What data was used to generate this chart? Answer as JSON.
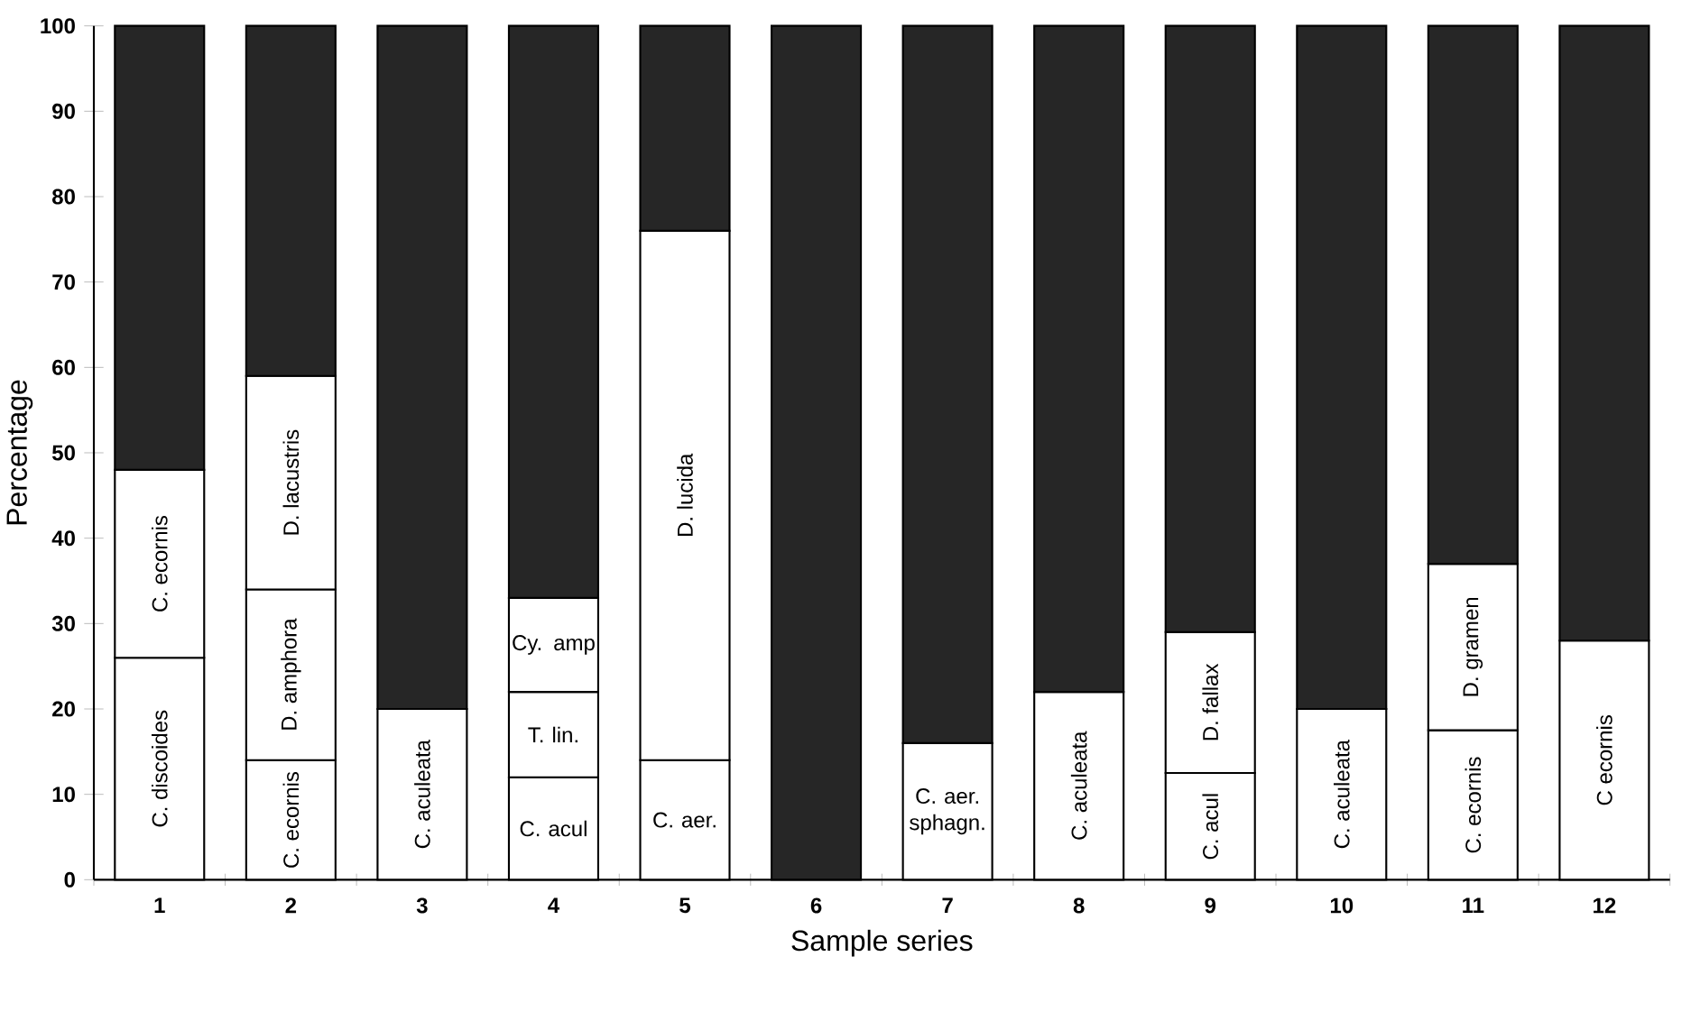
{
  "chart_data": {
    "type": "bar",
    "stacked": true,
    "xlabel": "Sample series",
    "ylabel": "Percentage",
    "categories": [
      "1",
      "2",
      "3",
      "4",
      "5",
      "6",
      "7",
      "8",
      "9",
      "10",
      "11",
      "12"
    ],
    "series": [
      {
        "color": "#ffffff",
        "values": [
          26,
          14,
          20,
          12,
          14,
          null,
          16,
          22,
          12.5,
          20,
          17.5,
          28
        ],
        "value_labels": [
          "C. discoides",
          "C. ecornis",
          "C. aculeata",
          "C. acul",
          "C. aer.",
          null,
          "C. aer. sphagn.",
          "C. aculeata",
          "C. acul",
          "C. aculeata",
          "C. ecornis",
          "C ecornis"
        ]
      },
      {
        "color": "#ffffff",
        "values": [
          22,
          20,
          null,
          10,
          62,
          null,
          null,
          null,
          16.5,
          null,
          19.5,
          null
        ],
        "value_labels": [
          "C. ecornis",
          "D. amphora",
          null,
          "T. lin.",
          "D. lucida",
          null,
          null,
          null,
          "D. fallax",
          null,
          "D. gramen",
          null
        ]
      },
      {
        "color": "#ffffff",
        "values": [
          null,
          25,
          null,
          11,
          null,
          null,
          null,
          null,
          null,
          null,
          null,
          null
        ],
        "value_labels": [
          null,
          "D. lacustris",
          null,
          "Cy. amp",
          null,
          null,
          null,
          null,
          null,
          null,
          null,
          null
        ]
      },
      {
        "color": "#262626",
        "values": [
          52,
          41,
          80,
          67,
          24,
          100,
          84,
          78,
          71,
          80,
          63,
          72
        ]
      }
    ],
    "ylim": [
      0,
      100
    ],
    "yticks": [
      0,
      10,
      20,
      30,
      40,
      50,
      60,
      70,
      80,
      90,
      100
    ],
    "grid": false
  }
}
